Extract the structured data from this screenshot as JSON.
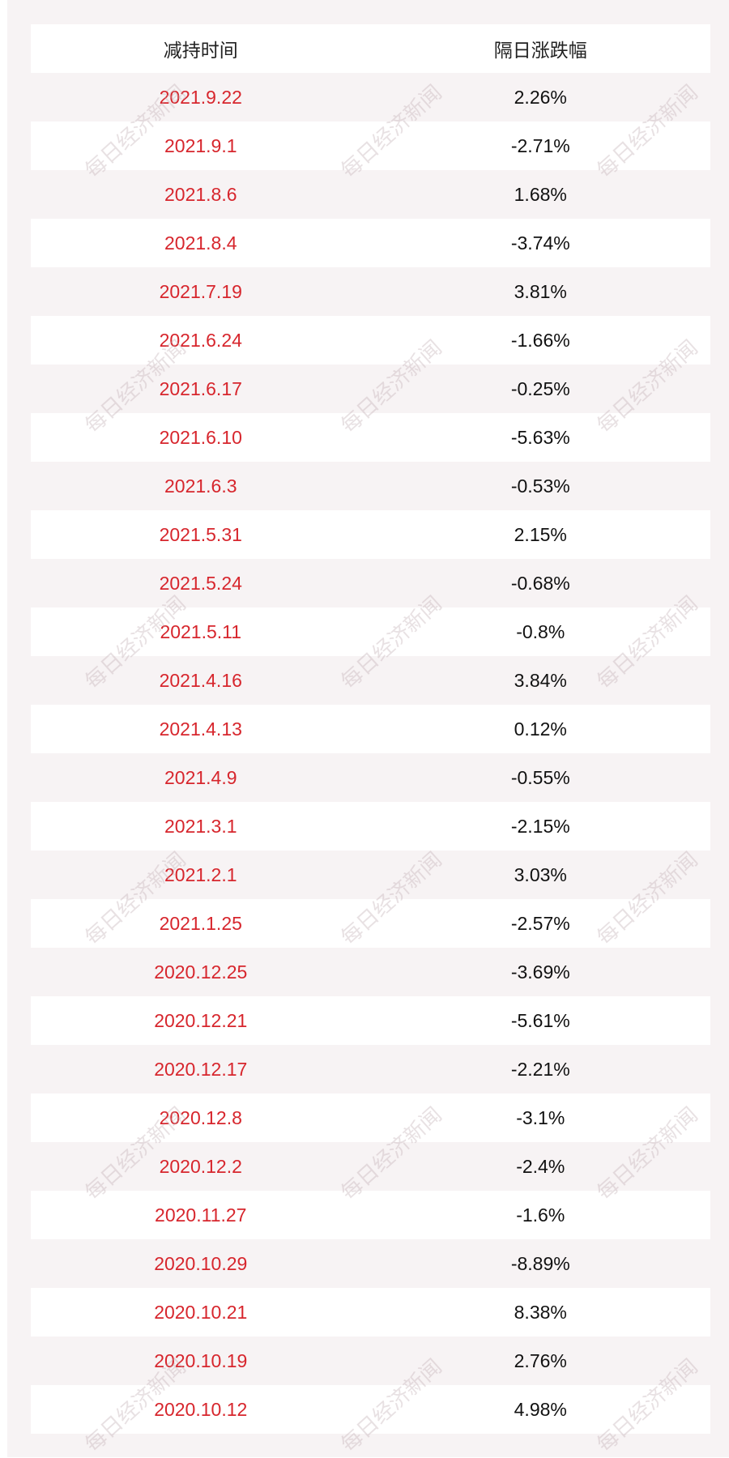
{
  "table": {
    "header": [
      "减持时间",
      "隔日涨跌幅"
    ],
    "rows": [
      [
        "2021.9.22",
        "2.26%"
      ],
      [
        "2021.9.1",
        "-2.71%"
      ],
      [
        "2021.8.6",
        "1.68%"
      ],
      [
        "2021.8.4",
        "-3.74%"
      ],
      [
        "2021.7.19",
        "3.81%"
      ],
      [
        "2021.6.24",
        "-1.66%"
      ],
      [
        "2021.6.17",
        "-0.25%"
      ],
      [
        "2021.6.10",
        "-5.63%"
      ],
      [
        "2021.6.3",
        "-0.53%"
      ],
      [
        "2021.5.31",
        "2.15%"
      ],
      [
        "2021.5.24",
        "-0.68%"
      ],
      [
        "2021.5.11",
        "-0.8%"
      ],
      [
        "2021.4.16",
        "3.84%"
      ],
      [
        "2021.4.13",
        "0.12%"
      ],
      [
        "2021.4.9",
        "-0.55%"
      ],
      [
        "2021.3.1",
        "-2.15%"
      ],
      [
        "2021.2.1",
        "3.03%"
      ],
      [
        "2021.1.25",
        "-2.57%"
      ],
      [
        "2020.12.25",
        "-3.69%"
      ],
      [
        "2020.12.21",
        "-5.61%"
      ],
      [
        "2020.12.17",
        "-2.21%"
      ],
      [
        "2020.12.8",
        "-3.1%"
      ],
      [
        "2020.12.2",
        "-2.4%"
      ],
      [
        "2020.11.27",
        "-1.6%"
      ],
      [
        "2020.10.29",
        "-8.89%"
      ],
      [
        "2020.10.21",
        "8.38%"
      ],
      [
        "2020.10.19",
        "2.76%"
      ],
      [
        "2020.10.12",
        "4.98%"
      ]
    ]
  },
  "watermark": "每日经济新闻"
}
